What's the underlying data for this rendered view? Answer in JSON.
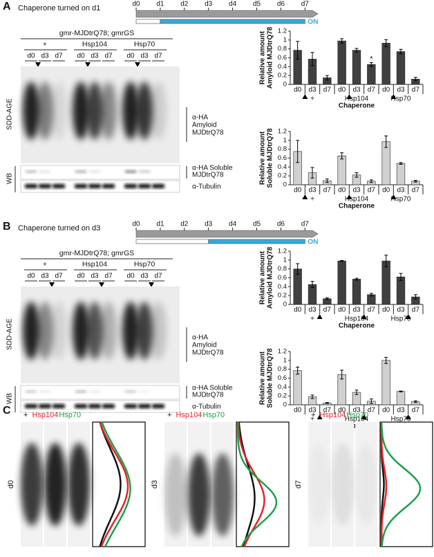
{
  "figure": {
    "panels": [
      {
        "label": "A",
        "title": "Chaperone turned on d1",
        "timeline": [
          "d0",
          "d1",
          "d2",
          "d3",
          "d4",
          "d5",
          "d6",
          "d7"
        ],
        "on_label": "ON",
        "genotype": "gmr-MJDtrQ78; gmrGS",
        "groups": [
          "+",
          "Hsp104",
          "Hsp70"
        ],
        "lanes": [
          "d0",
          "d3",
          "d7"
        ],
        "sdd_label": "SDD-AGE",
        "wb_label": "WB",
        "amyloid_label": [
          "α-HA",
          "Amyloid",
          "MJDtrQ78"
        ],
        "soluble_label": [
          "α-HA Soluble",
          "MJDtrQ78"
        ],
        "tubulin_label": "α-Tubulin",
        "charts": [
          {
            "type": "bar",
            "ylabel": [
              "Relative amount",
              "Amyloid MJDtrQ78"
            ],
            "categories": [
              "d0",
              "d3",
              "d7",
              "d0",
              "d3",
              "d7",
              "d0",
              "d3",
              "d7"
            ],
            "groups": [
              "+",
              "Hsp104",
              "Hsp70"
            ],
            "xlabel": "Chaperone",
            "values": [
              0.77,
              0.57,
              0.15,
              0.98,
              0.77,
              0.45,
              0.93,
              0.74,
              0.12
            ],
            "errors": [
              0.2,
              0.15,
              0.05,
              0.05,
              0.04,
              0.04,
              0.08,
              0.05,
              0.04
            ],
            "color": "#404040",
            "ylim": [
              0,
              1.2
            ],
            "yticks": [
              0,
              0.2,
              0.4,
              0.6,
              0.8,
              1,
              1.2
            ],
            "annotations": [
              {
                "text": "*",
                "index": 5
              }
            ]
          },
          {
            "type": "bar",
            "ylabel": [
              "Relative amount",
              "Soluble MJDtrQ78"
            ],
            "categories": [
              "d0",
              "d3",
              "d7",
              "d0",
              "d3",
              "d7",
              "d0",
              "d3",
              "d7"
            ],
            "groups": [
              "+",
              "Hsp104",
              "Hsp70"
            ],
            "xlabel": "Chaperone",
            "values": [
              0.75,
              0.27,
              0.09,
              0.65,
              0.22,
              0.08,
              0.97,
              0.48,
              0.08
            ],
            "errors": [
              0.25,
              0.12,
              0.04,
              0.07,
              0.05,
              0.03,
              0.13,
              0.02,
              0.02
            ],
            "color": "#d0d0d0",
            "ylim": [
              0,
              1.2
            ],
            "yticks": [
              0,
              0.2,
              0.4,
              0.6,
              0.8,
              1,
              1.2
            ]
          }
        ]
      },
      {
        "label": "B",
        "title": "Chaperone turned on d3",
        "timeline": [
          "d0",
          "d1",
          "d2",
          "d3",
          "d4",
          "d5",
          "d6",
          "d7"
        ],
        "on_label": "ON",
        "genotype": "gmr-MJDtrQ78; gmrGS",
        "groups": [
          "+",
          "Hsp104",
          "Hsp70"
        ],
        "lanes": [
          "d0",
          "d3",
          "d7"
        ],
        "sdd_label": "SDD-AGE",
        "wb_label": "WB",
        "amyloid_label": [
          "α-HA",
          "Amyloid",
          "MJDtrQ78"
        ],
        "soluble_label": [
          "α-HA Soluble",
          "MJDtrQ78"
        ],
        "tubulin_label": "α-Tubulin",
        "charts": [
          {
            "type": "bar",
            "ylabel": [
              "Relative amount",
              "Amyloid MJDtrQ78"
            ],
            "categories": [
              "d0",
              "d3",
              "d7",
              "d0",
              "d3",
              "d7",
              "d0",
              "d3",
              "d7"
            ],
            "groups": [
              "+",
              "Hsp104",
              "Hsp70"
            ],
            "xlabel": "Chaperone",
            "values": [
              0.8,
              0.45,
              0.13,
              0.98,
              0.57,
              0.22,
              0.98,
              0.62,
              0.17
            ],
            "errors": [
              0.12,
              0.07,
              0.02,
              0.01,
              0.02,
              0.03,
              0.13,
              0.08,
              0.05
            ],
            "color": "#404040",
            "ylim": [
              0,
              1.2
            ],
            "yticks": [
              0,
              0.2,
              0.4,
              0.6,
              0.8,
              1,
              1.2
            ]
          },
          {
            "type": "bar",
            "ylabel": [
              "Relative amount",
              "Soluble MJDtrQ78"
            ],
            "categories": [
              "d0",
              "d3",
              "d7",
              "d0",
              "d3",
              "d7",
              "d0",
              "d3",
              "d7"
            ],
            "groups": [
              "+",
              "Hsp104",
              "Hsp70"
            ],
            "xlabel": "Chaperone",
            "values": [
              0.77,
              0.18,
              0.04,
              0.68,
              0.28,
              0.08,
              1.0,
              0.3,
              0.07
            ],
            "errors": [
              0.08,
              0.04,
              0.01,
              0.1,
              0.05,
              0.05,
              0.07,
              0.01,
              0.02
            ],
            "color": "#d0d0d0",
            "ylim": [
              0,
              1.2
            ],
            "yticks": [
              0,
              0.2,
              0.4,
              0.6,
              0.8,
              1,
              1.2
            ]
          }
        ]
      }
    ],
    "panel_c": {
      "label": "C",
      "groups": [
        {
          "name": "+",
          "color": "#111111"
        },
        {
          "name": "Hsp104",
          "color": "#e8202a"
        },
        {
          "name": "Hsp70",
          "color": "#1aa04a"
        }
      ],
      "days": [
        "d0",
        "d3",
        "d7"
      ]
    }
  }
}
